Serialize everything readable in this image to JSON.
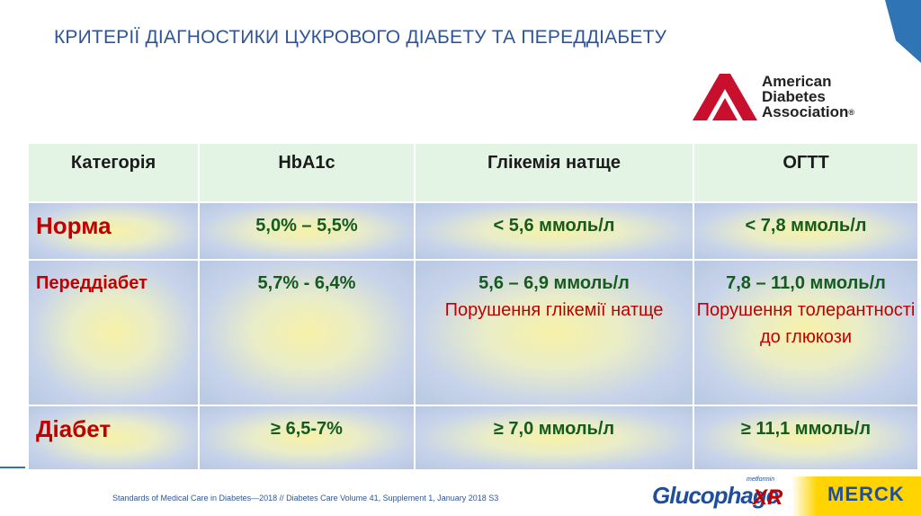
{
  "slide": {
    "title": "КРИТЕРІЇ ДІАГНОСТИКИ ЦУКРОВОГО ДІАБЕТУ ТА ПЕРЕДДІАБЕТУ"
  },
  "ada_logo": {
    "line1": "American",
    "line2": "Diabetes",
    "line3": "Association",
    "reg": "®",
    "icon": "triangle-a-logo-icon",
    "color": "#c8102e"
  },
  "table": {
    "headers": [
      "Категорія",
      "HbA1c",
      "Глікемія натще",
      "ОГТТ"
    ],
    "rows": [
      {
        "category": "Норма",
        "hba1c": "5,0% – 5,5%",
        "fasting": "< 5,6 ммоль/л",
        "fasting_note": "",
        "ogtt": "< 7,8 ммоль/л",
        "ogtt_note": ""
      },
      {
        "category": "Переддіабет",
        "hba1c": "5,7% - 6,4%",
        "fasting": "5,6 – 6,9 ммоль/л",
        "fasting_note": "Порушення глікемії натще",
        "ogtt": "7,8 – 11,0 ммоль/л",
        "ogtt_note": "Порушення толерантності до глюкози"
      },
      {
        "category": "Діабет",
        "hba1c": "≥ 6,5-7%",
        "fasting": "≥ 7,0 ммоль/л",
        "fasting_note": "",
        "ogtt": "≥ 11,1 ммоль/л",
        "ogtt_note": ""
      }
    ]
  },
  "footer": {
    "citation": "Standards of Medical Care in Diabetes—2018 // Diabetes Care Volume 41, Supplement 1, January 2018 S3"
  },
  "brands": {
    "glucophage_small": "metformin",
    "glucophage": "Glucophage",
    "glucophage_suffix": "XR",
    "merck": "MERCK"
  },
  "colors": {
    "title": "#2f5597",
    "header_bg": "#e3f3e4",
    "value_text": "#155a1e",
    "category_text": "#c00000",
    "merck_yellow": "#ffd400"
  }
}
